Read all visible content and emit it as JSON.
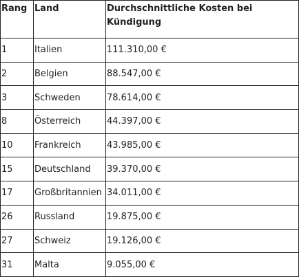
{
  "table": {
    "headers": [
      "Rang",
      "Land",
      "Durchschnittliche Kosten bei Kündigung"
    ],
    "rows": [
      [
        "1",
        "Italien",
        "111.310,00 €"
      ],
      [
        "2",
        "Belgien",
        "88.547,00 €"
      ],
      [
        "3",
        "Schweden",
        "78.614,00 €"
      ],
      [
        "8",
        "Österreich",
        "44.397,00 €"
      ],
      [
        "10",
        "Frankreich",
        "43.985,00 €"
      ],
      [
        "15",
        "Deutschland",
        "39.370,00 €"
      ],
      [
        "17",
        "Großbritannien",
        "34.011,00 €"
      ],
      [
        "26",
        "Russland",
        "19.875,00 €"
      ],
      [
        "27",
        "Schweiz",
        "19.126,00 €"
      ],
      [
        "31",
        "Malta",
        "9.055,00 €"
      ]
    ]
  }
}
